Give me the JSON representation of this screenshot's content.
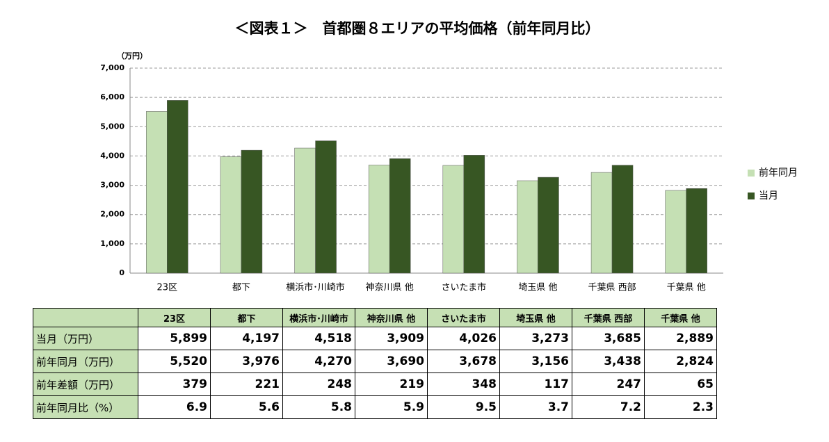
{
  "chart_data": {
    "type": "bar",
    "title": "＜図表１＞　首都圏８エリアの平均価格（前年同月比）",
    "y_unit": "（万円）",
    "categories": [
      "23区",
      "都下",
      "横浜市･川崎市",
      "神奈川県 他",
      "さいたま市",
      "埼玉県 他",
      "千葉県 西部",
      "千葉県 他"
    ],
    "series": [
      {
        "name": "前年同月",
        "color": "#c5e0b4",
        "values": [
          5520,
          3976,
          4270,
          3690,
          3678,
          3156,
          3438,
          2824
        ]
      },
      {
        "name": "当月",
        "color": "#375623",
        "values": [
          5899,
          4197,
          4518,
          3909,
          4026,
          3273,
          3685,
          2889
        ]
      }
    ],
    "ylim": [
      0,
      7000
    ],
    "yticks": [
      0,
      {
        "value": 1000,
        "label": "1,000"
      },
      {
        "value": 2000,
        "label": "2,000"
      },
      {
        "value": 3000,
        "label": "3,000"
      },
      {
        "value": 4000,
        "label": "4,000"
      },
      {
        "value": 5000,
        "label": "5,000"
      },
      {
        "value": 6000,
        "label": "6,000"
      },
      {
        "value": 7000,
        "label": "7,000"
      }
    ],
    "grid": true,
    "legend": "right"
  },
  "table": {
    "rows": [
      {
        "label": "当月（万円）",
        "cells": [
          "5,899",
          "4,197",
          "4,518",
          "3,909",
          "4,026",
          "3,273",
          "3,685",
          "2,889"
        ]
      },
      {
        "label": "前年同月（万円）",
        "cells": [
          "5,520",
          "3,976",
          "4,270",
          "3,690",
          "3,678",
          "3,156",
          "3,438",
          "2,824"
        ]
      },
      {
        "label": "前年差額（万円）",
        "cells": [
          "379",
          "221",
          "248",
          "219",
          "348",
          "117",
          "247",
          "65"
        ]
      },
      {
        "label": "前年同月比（%）",
        "cells": [
          "6.9",
          "5.6",
          "5.8",
          "5.9",
          "9.5",
          "3.7",
          "7.2",
          "2.3"
        ]
      }
    ]
  }
}
